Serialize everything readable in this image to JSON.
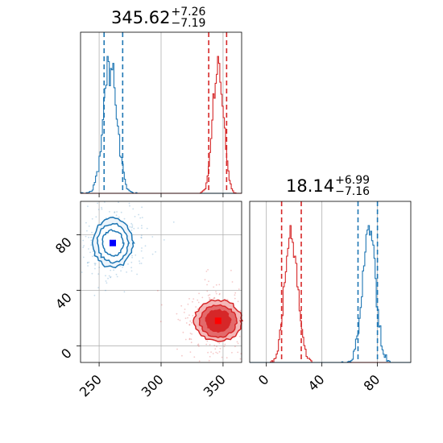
{
  "chart_data": {
    "type": "corner",
    "panels": [
      {
        "panel": "top-left",
        "type": "histogram",
        "title": {
          "value": "345.62",
          "plus": "+7.26",
          "minus": "−7.19"
        },
        "x_range": [
          235,
          365
        ],
        "series": [
          {
            "color": "#1f77b4",
            "center": 259,
            "sigma": 5.5,
            "quantiles": [
              254,
              269
            ]
          },
          {
            "color": "#d62728",
            "center": 346,
            "sigma": 4.2,
            "quantiles": [
              338.43,
              352.88
            ]
          }
        ]
      },
      {
        "panel": "bottom-left",
        "type": "contour",
        "x_range": [
          235,
          365
        ],
        "y_range": [
          -12,
          104
        ],
        "xticks": [
          "250",
          "300",
          "350"
        ],
        "yticks": [
          "0",
          "40",
          "80"
        ],
        "xtick_values": [
          250,
          300,
          350
        ],
        "ytick_values": [
          0,
          40,
          80
        ],
        "grid": true,
        "series": [
          {
            "color": "#1f77b4",
            "marker_color": "#0000ff",
            "center": [
              261,
              74
            ],
            "spread": [
              12,
              13
            ]
          },
          {
            "color": "#d62728",
            "marker_color": "#ff0000",
            "center": [
              346,
              18
            ],
            "spread": [
              14,
              11
            ]
          }
        ]
      },
      {
        "panel": "bottom-right",
        "type": "histogram",
        "title": {
          "value": "18.14",
          "plus": "+6.99",
          "minus": "−7.16"
        },
        "x_range": [
          -12,
          104
        ],
        "xticks": [
          "0",
          "40",
          "80"
        ],
        "xtick_values": [
          0,
          40,
          80
        ],
        "series": [
          {
            "color": "#d62728",
            "center": 18,
            "sigma": 4.5,
            "quantiles": [
              10.98,
              25.13
            ]
          },
          {
            "color": "#1f77b4",
            "center": 74,
            "sigma": 4.5,
            "quantiles": [
              66,
              80
            ]
          }
        ]
      }
    ]
  }
}
